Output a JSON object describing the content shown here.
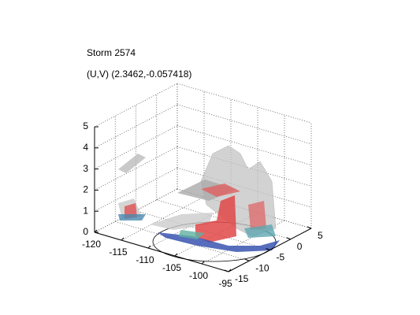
{
  "chart_data": {
    "type": "surface3d",
    "title": "Storm 2574",
    "subtitle": "(U,V) (2.3462,-0.057418)",
    "xlim": [
      -120,
      -95
    ],
    "xticks": [
      -120,
      -115,
      -110,
      -105,
      -100,
      -95
    ],
    "ylim": [
      -15,
      5
    ],
    "yticks": [
      -15,
      -10,
      -5,
      0,
      5
    ],
    "zlim": [
      0,
      5
    ],
    "zticks": [
      0,
      1,
      2,
      3,
      4,
      5
    ],
    "grid": true
  }
}
